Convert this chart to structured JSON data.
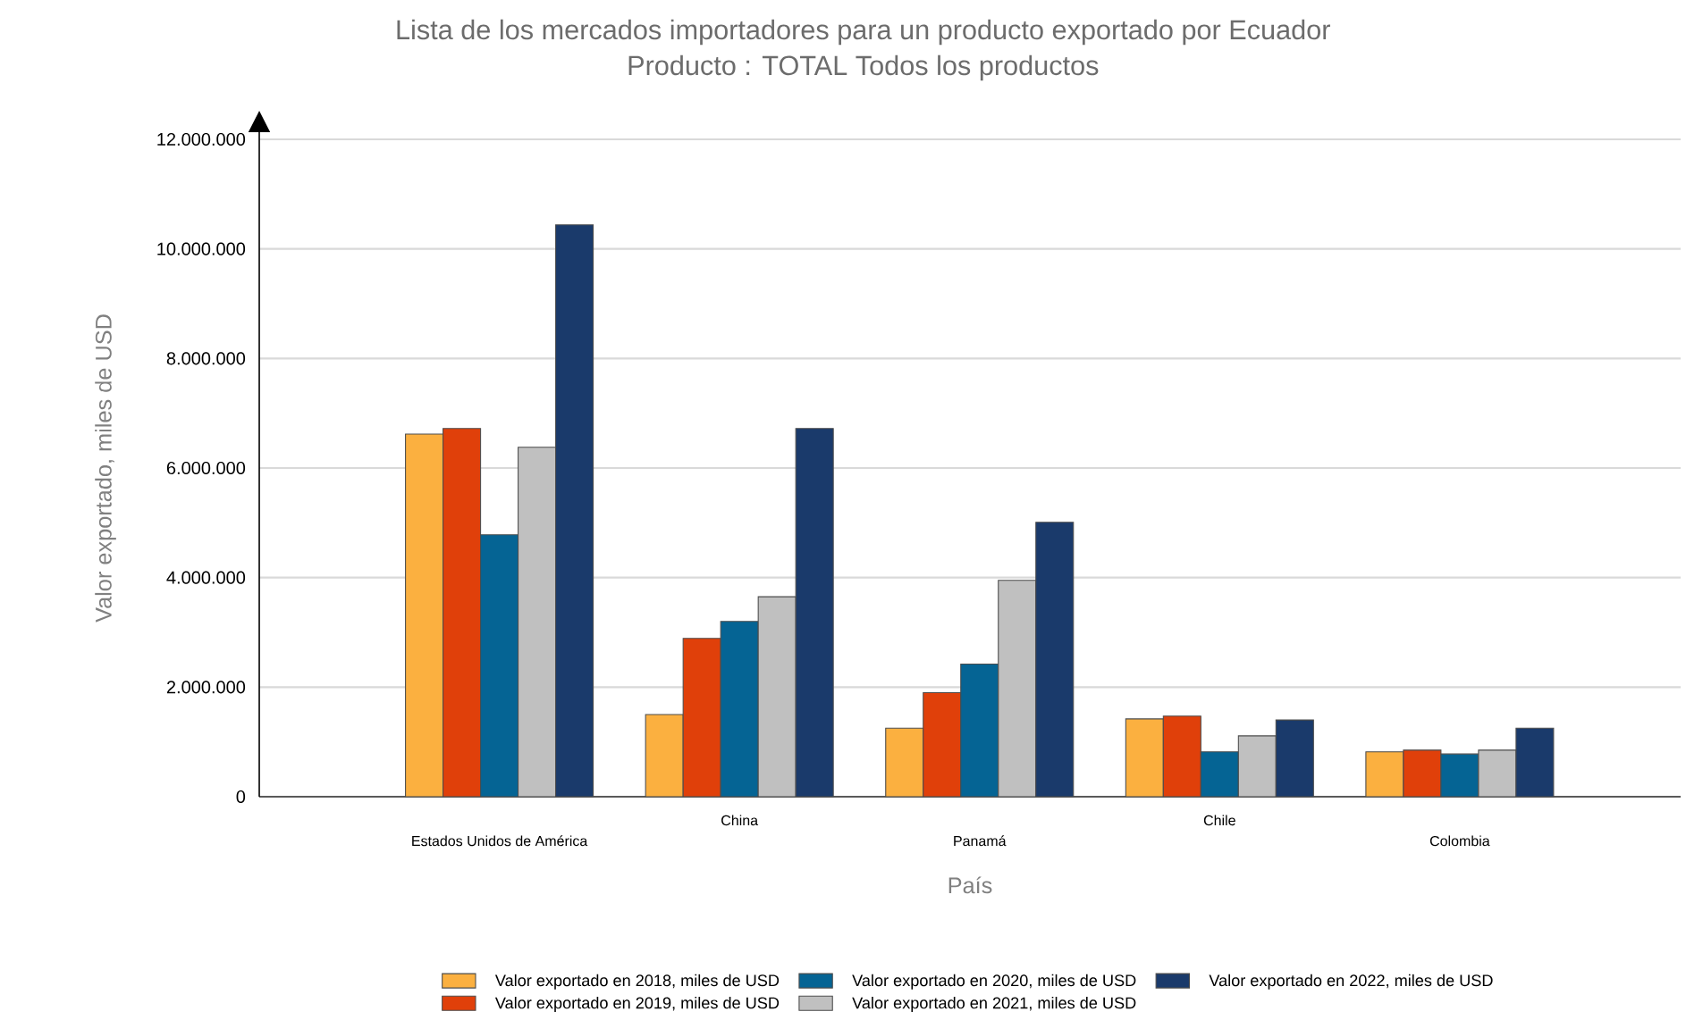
{
  "chart_data": {
    "type": "bar",
    "title": "Lista de los mercados importadores para un producto exportado por Ecuador",
    "subtitle": "Producto : TOTAL Todos los productos",
    "xlabel": "País",
    "ylabel": "Valor exportado, miles de USD",
    "categories": [
      "Estados Unidos de América",
      "China",
      "Panamá",
      "Chile",
      "Colombia"
    ],
    "series": [
      {
        "name": "Valor exportado en 2018, miles de USD",
        "color": "#fbb040",
        "values": [
          6620000,
          1500000,
          1250000,
          1420000,
          820000
        ]
      },
      {
        "name": "Valor exportado en 2019, miles de USD",
        "color": "#e0400a",
        "values": [
          6720000,
          2890000,
          1900000,
          1470000,
          850000
        ]
      },
      {
        "name": "Valor exportado en 2020, miles de USD",
        "color": "#056494",
        "values": [
          4780000,
          3200000,
          2420000,
          820000,
          780000
        ]
      },
      {
        "name": "Valor exportado en 2021, miles de USD",
        "color": "#c0c0c0",
        "values": [
          6380000,
          3650000,
          3950000,
          1110000,
          850000
        ]
      },
      {
        "name": "Valor exportado en 2022, miles de USD",
        "color": "#1a3a6b",
        "values": [
          10440000,
          6720000,
          5010000,
          1400000,
          1250000
        ]
      }
    ],
    "ylim": [
      0,
      12000000
    ],
    "yticks": [
      {
        "value": 0,
        "label": "0"
      },
      {
        "value": 2000000,
        "label": "2.000.000"
      },
      {
        "value": 4000000,
        "label": "4.000.000"
      },
      {
        "value": 6000000,
        "label": "6.000.000"
      },
      {
        "value": 8000000,
        "label": "8.000.000"
      },
      {
        "value": 10000000,
        "label": "10.000.000"
      },
      {
        "value": 12000000,
        "label": "12.000.000"
      }
    ],
    "grid": "y",
    "legend": "bottom"
  }
}
